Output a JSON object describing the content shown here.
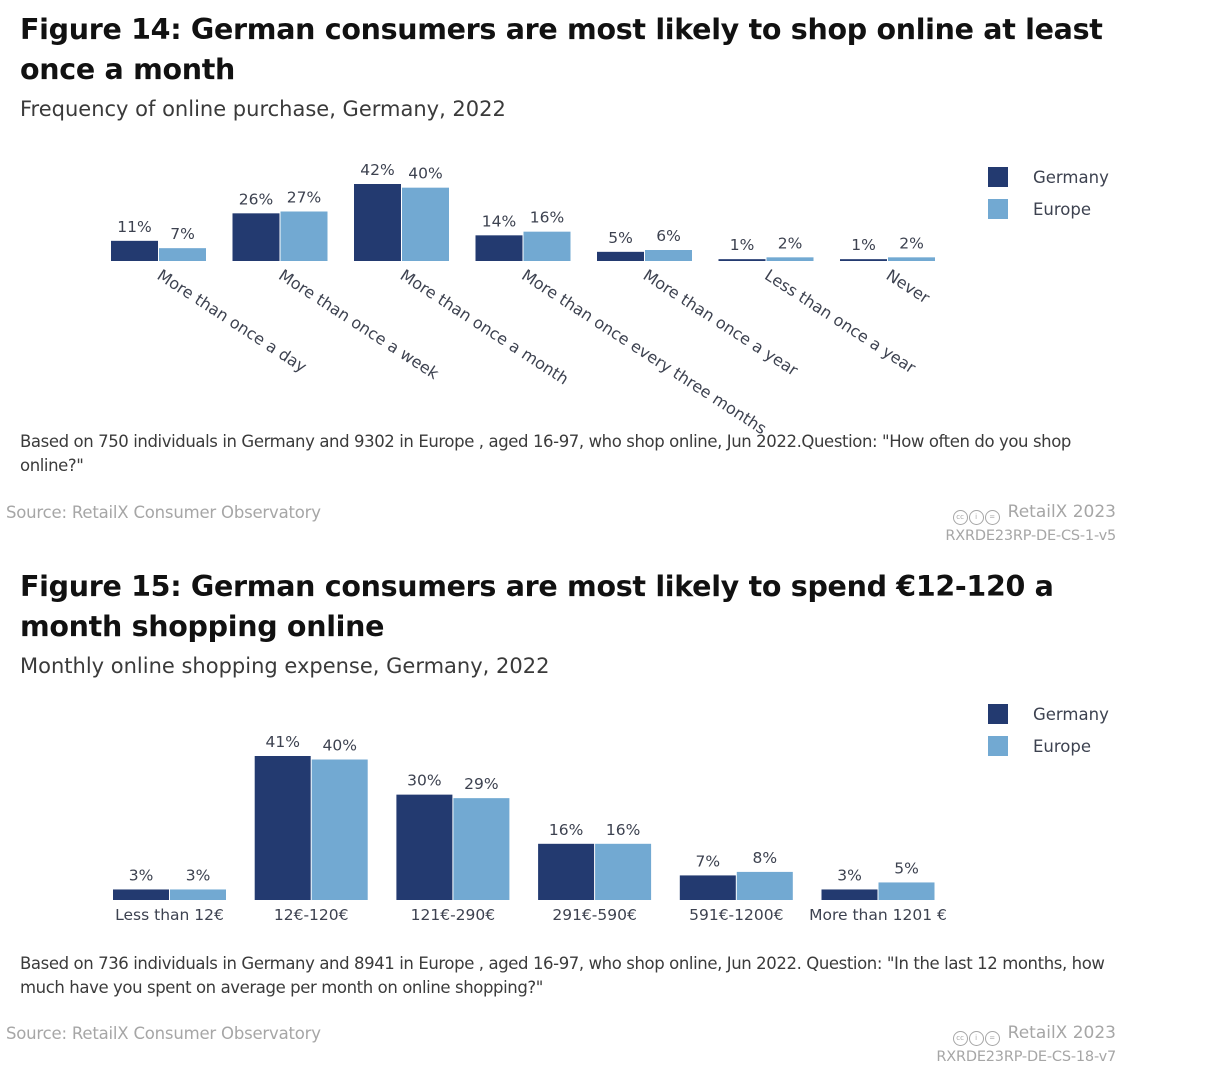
{
  "colors": {
    "germany": "#233a70",
    "europe": "#72a9d2",
    "value_label": "#3d4250",
    "category_label": "#3d4250"
  },
  "figures": [
    {
      "title": "Figure 14: German consumers are most likely to shop online at least once a month",
      "subtitle": "Frequency of online purchase, Germany, 2022",
      "note": "Based on 750 individuals in Germany and 9302 in Europe , aged 16-97, who shop online, Jun 2022.Question: \"How often do you shop online?\"",
      "source": "Source: RetailX Consumer Observatory",
      "brand": "RetailX 2023",
      "license_icons": [
        "cc-icon",
        "attribution-icon",
        "no-derivatives-icon"
      ],
      "code": "RXRDE23RP-DE-CS-1-v5",
      "legend": [
        {
          "label": "Germany",
          "color": "#233a70"
        },
        {
          "label": "Europe",
          "color": "#72a9d2"
        }
      ]
    },
    {
      "title": "Figure 15: German consumers are most likely to spend €12-120 a month shopping online",
      "subtitle": "Monthly online shopping expense, Germany, 2022",
      "note": "Based on 736 individuals in Germany and 8941 in Europe , aged 16-97, who shop online, Jun 2022. Question: \"In the last 12 months, how much have you spent on average per month on online shopping?\"",
      "source": "Source: RetailX Consumer Observatory",
      "brand": "RetailX 2023",
      "license_icons": [
        "cc-icon",
        "attribution-icon",
        "no-derivatives-icon"
      ],
      "code": "RXRDE23RP-DE-CS-18-v7",
      "legend": [
        {
          "label": "Germany",
          "color": "#233a70"
        },
        {
          "label": "Europe",
          "color": "#72a9d2"
        }
      ]
    }
  ],
  "chart_data": [
    {
      "type": "bar",
      "title": "Figure 14: German consumers are most likely to shop online at least once a month",
      "subtitle": "Frequency of online purchase, Germany, 2022",
      "xlabel": "",
      "ylabel": "",
      "categories": [
        "More than once a day",
        "More than once a week",
        "More than once a month",
        "More than once every three months",
        "More than once a year",
        "Less than once a year",
        "Never"
      ],
      "series": [
        {
          "name": "Germany",
          "color": "#233a70",
          "values": [
            11,
            26,
            42,
            14,
            5,
            1,
            1
          ]
        },
        {
          "name": "Europe",
          "color": "#72a9d2",
          "values": [
            7,
            27,
            40,
            16,
            6,
            2,
            2
          ]
        }
      ],
      "value_suffix": "%",
      "ylim": [
        0,
        42
      ],
      "grid": false,
      "legend_position": "top-right",
      "category_label_rotation": "diagonal"
    },
    {
      "type": "bar",
      "title": "Figure 15: German consumers are most likely to spend €12-120 a month shopping online",
      "subtitle": "Monthly online shopping expense, Germany, 2022",
      "xlabel": "",
      "ylabel": "",
      "categories": [
        "Less than 12€",
        "12€-120€",
        "121€-290€",
        "291€-590€",
        "591€-1200€",
        "More than 1201 €"
      ],
      "series": [
        {
          "name": "Germany",
          "color": "#233a70",
          "values": [
            3,
            41,
            30,
            16,
            7,
            3
          ]
        },
        {
          "name": "Europe",
          "color": "#72a9d2",
          "values": [
            3,
            40,
            29,
            16,
            8,
            5
          ]
        }
      ],
      "value_suffix": "%",
      "ylim": [
        0,
        41
      ],
      "grid": false,
      "legend_position": "top-right",
      "category_label_rotation": "horizontal"
    }
  ]
}
